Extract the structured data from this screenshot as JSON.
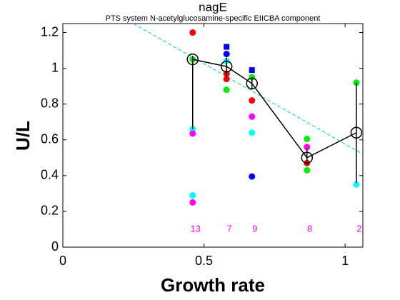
{
  "chart_data": {
    "type": "scatter",
    "title": "nagE",
    "subtitle": "PTS system N-acetylglucosamine-specific EIICBA component",
    "x_label": "Growth rate",
    "y_label": "U/L",
    "xlim": [
      0,
      1.063
    ],
    "ylim": [
      0,
      1.25
    ],
    "xticks": [
      0,
      0.5,
      1
    ],
    "yticks": [
      0,
      0.2,
      0.4,
      0.6,
      0.8,
      1,
      1.2
    ],
    "series": [
      {
        "color": "#ff0000",
        "marker": "circle",
        "x": [
          0.46,
          0.58,
          0.58,
          0.67,
          0.865
        ],
        "values": [
          1.2,
          0.97,
          0.94,
          0.82,
          0.47
        ]
      },
      {
        "color": "#00ee00",
        "marker": "circle",
        "x": [
          0.46,
          0.58,
          0.67,
          0.865,
          0.865,
          1.04
        ],
        "values": [
          1.05,
          0.88,
          0.95,
          0.605,
          0.43,
          0.92
        ]
      },
      {
        "color": "#0000ff",
        "marker": "circle",
        "x": [
          0.58,
          0.67
        ],
        "values": [
          1.08,
          0.395
        ]
      },
      {
        "color": "#0000ff",
        "marker": "square",
        "x": [
          0.58,
          0.67
        ],
        "values": [
          1.12,
          0.99
        ]
      },
      {
        "color": "#00ffff",
        "marker": "circle",
        "x": [
          0.46,
          0.46,
          0.58,
          0.67,
          1.04
        ],
        "values": [
          0.66,
          0.29,
          1.04,
          0.64,
          0.35
        ]
      },
      {
        "color": "#ff00ff",
        "marker": "circle",
        "x": [
          0.46,
          0.46,
          0.67,
          0.865
        ],
        "values": [
          0.635,
          0.25,
          0.73,
          0.56
        ]
      }
    ],
    "mean": {
      "color": "#000000",
      "x": [
        0.46,
        0.58,
        0.67,
        0.865,
        1.04
      ],
      "values": [
        1.05,
        1.01,
        0.915,
        0.5,
        0.64
      ],
      "low": [
        0.66,
        0.95,
        0.88,
        0.46,
        0.36
      ],
      "high": [
        1.07,
        1.06,
        0.94,
        0.55,
        0.92
      ]
    },
    "fit": {
      "color": "#00cccc",
      "x": [
        0.25,
        1.063
      ],
      "y": [
        1.25,
        0.52
      ]
    },
    "counts": [
      13,
      7,
      9,
      8,
      2
    ],
    "counts_color": "#ff00ff"
  }
}
